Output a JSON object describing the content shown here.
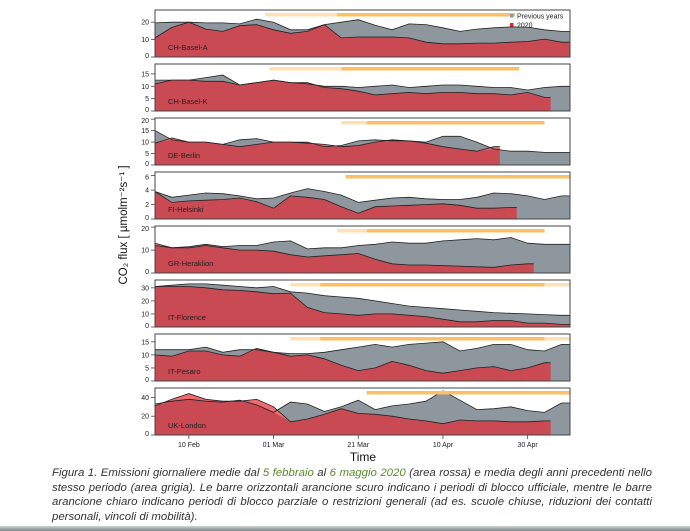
{
  "chart_data": {
    "type": "area",
    "xlabel": "Time",
    "ylabel": "CO₂ flux [ µmolm⁻²s⁻¹ ]",
    "xlim": [
      "2020-02-02",
      "2020-05-10"
    ],
    "x_ticks": [
      {
        "date": "2020-02-10",
        "label": "10 Feb"
      },
      {
        "date": "2020-03-01",
        "label": "01 Mar"
      },
      {
        "date": "2020-03-21",
        "label": "21 Mar"
      },
      {
        "date": "2020-04-10",
        "label": "10 Apr"
      },
      {
        "date": "2020-04-30",
        "label": "30 Apr"
      }
    ],
    "legend": {
      "placement": "top-right",
      "items": [
        {
          "label": "Previous years",
          "color": "#8e979e"
        },
        {
          "label": "2020",
          "color": "#e8262c"
        }
      ]
    },
    "colors": {
      "previous_years": "#8e979e",
      "y2020": "#c94a52",
      "y2020_above": "#f06a6e",
      "bar_dark": "#fbbf66",
      "bar_light": "#fde0b4"
    },
    "x": [
      "2020-02-02",
      "2020-02-06",
      "2020-02-10",
      "2020-02-14",
      "2020-02-18",
      "2020-02-22",
      "2020-02-26",
      "2020-03-01",
      "2020-03-05",
      "2020-03-09",
      "2020-03-13",
      "2020-03-17",
      "2020-03-21",
      "2020-03-25",
      "2020-03-29",
      "2020-04-02",
      "2020-04-06",
      "2020-04-10",
      "2020-04-14",
      "2020-04-18",
      "2020-04-22",
      "2020-04-26",
      "2020-04-30",
      "2020-05-04",
      "2020-05-08"
    ],
    "panels": [
      {
        "site": "CH-Basel-A",
        "ylim": [
          0,
          27
        ],
        "yticks": [
          0,
          10,
          20
        ],
        "y2020": [
          11,
          17,
          20,
          16,
          14.7,
          18,
          18.6,
          15.6,
          13.6,
          14.7,
          18.6,
          11,
          11.5,
          11.5,
          11.5,
          11,
          8.5,
          7.6,
          7.6,
          8,
          8,
          8.5,
          8.9,
          10.3,
          8.5
        ],
        "previous_years": [
          19.6,
          20,
          20,
          19.6,
          19.6,
          19,
          21.7,
          20,
          15.6,
          15.6,
          18.6,
          20,
          21.4,
          18.2,
          15.6,
          19,
          18.6,
          16.8,
          14.7,
          16,
          16.8,
          17.3,
          17.2,
          15.6,
          14.7
        ],
        "restrictions": [
          {
            "level": "partial",
            "start": "2020-02-28",
            "end": "2020-03-16"
          },
          {
            "level": "lockdown",
            "start": "2020-03-16",
            "end": "2020-04-27"
          }
        ]
      },
      {
        "site": "CH-Basel-K",
        "ylim": [
          0,
          19
        ],
        "yticks": [
          0,
          5,
          10,
          15
        ],
        "y2020": [
          11,
          12.5,
          12.5,
          12,
          12,
          10.5,
          11.5,
          12.5,
          11.5,
          11.5,
          9.5,
          9,
          8,
          6.5,
          7,
          7.5,
          7,
          7.5,
          7.5,
          7,
          7,
          6.5,
          7.5,
          5.5,
          null
        ],
        "previous_years": [
          12.5,
          12.5,
          12.5,
          13.5,
          14.5,
          10.5,
          11.5,
          12.5,
          11.5,
          11,
          10,
          10,
          9.5,
          10,
          10.5,
          9.5,
          10,
          10.5,
          10.5,
          10,
          9.5,
          9.5,
          8.5,
          9.5,
          10
        ],
        "restrictions": [
          {
            "level": "partial",
            "start": "2020-02-29",
            "end": "2020-03-17"
          },
          {
            "level": "lockdown",
            "start": "2020-03-17",
            "end": "2020-04-28"
          }
        ]
      },
      {
        "site": "DE-Berlin",
        "ylim": [
          0,
          20.5
        ],
        "yticks": [
          0,
          5,
          10,
          15,
          20
        ],
        "y2020": [
          9.5,
          11.8,
          10,
          10,
          9,
          8,
          9,
          10,
          10,
          9.5,
          9,
          8,
          8.5,
          10,
          11,
          10.5,
          9.5,
          8,
          7,
          6,
          8,
          null,
          null,
          null,
          null
        ],
        "previous_years": [
          15,
          11,
          10,
          10,
          9,
          11,
          11.5,
          10,
          10,
          10,
          8,
          8.5,
          10.5,
          11,
          10.5,
          10.5,
          10,
          12.5,
          12.5,
          10,
          7,
          6,
          6,
          5.5,
          5.5
        ],
        "restrictions": [
          {
            "level": "partial",
            "start": "2020-03-17",
            "end": "2020-03-23"
          },
          {
            "level": "lockdown",
            "start": "2020-03-23",
            "end": "2020-05-04"
          }
        ]
      },
      {
        "site": "FI-Helsinki",
        "ylim": [
          0,
          6.5
        ],
        "yticks": [
          0,
          2,
          4,
          6
        ],
        "y2020": [
          3.8,
          2.3,
          2.5,
          2.6,
          2.7,
          2.9,
          2.4,
          1.5,
          3.2,
          3.0,
          2.7,
          1.7,
          0.8,
          1.7,
          1.8,
          1.9,
          2.0,
          2.1,
          1.9,
          1.5,
          1.5,
          1.6,
          null,
          null,
          null
        ],
        "previous_years": [
          3.8,
          3.0,
          3.3,
          3.6,
          3.5,
          3.2,
          2.8,
          2.9,
          3.6,
          4.2,
          3.8,
          3.3,
          2.3,
          2.6,
          2.9,
          3.0,
          2.8,
          2.7,
          2.7,
          3.0,
          3.6,
          3.5,
          3.2,
          2.7,
          3.2
        ],
        "restrictions": [
          {
            "level": "lockdown",
            "start": "2020-03-18",
            "end": "2020-05-10"
          }
        ]
      },
      {
        "site": "GR-Heraklion",
        "ylim": [
          0,
          20.5
        ],
        "yticks": [
          0,
          10,
          20
        ],
        "y2020": [
          13,
          11,
          11,
          12,
          11,
          10,
          10,
          9.5,
          8,
          7,
          7.5,
          8,
          8.5,
          6,
          4,
          3.5,
          3.5,
          3.2,
          3,
          2.7,
          2.5,
          3.5,
          4,
          null,
          null
        ],
        "previous_years": [
          12,
          11,
          11.5,
          12.5,
          11.5,
          12,
          12,
          13.5,
          14,
          10.5,
          11,
          11,
          12,
          12.5,
          13.5,
          13,
          13,
          14,
          14.5,
          15,
          14.5,
          15.5,
          13,
          12.5,
          12.5
        ],
        "restrictions": [
          {
            "level": "partial",
            "start": "2020-03-16",
            "end": "2020-03-23"
          },
          {
            "level": "lockdown",
            "start": "2020-03-23",
            "end": "2020-05-04"
          }
        ]
      },
      {
        "site": "IT-Florence",
        "ylim": [
          0,
          36
        ],
        "yticks": [
          0,
          10,
          20,
          30
        ],
        "y2020": [
          31,
          31,
          31,
          30,
          28.5,
          28,
          27,
          25.5,
          26,
          15,
          11,
          10,
          9,
          10,
          10,
          9,
          8,
          6,
          4,
          4,
          5,
          5,
          3,
          3,
          2
        ],
        "previous_years": [
          31,
          32,
          33,
          33,
          32,
          31,
          30,
          31,
          27,
          26,
          24,
          23,
          22,
          20,
          18,
          16,
          15,
          14,
          13,
          12,
          11,
          10.5,
          10,
          9.5,
          9
        ],
        "restrictions": [
          {
            "level": "partial",
            "start": "2020-03-05",
            "end": "2020-03-12"
          },
          {
            "level": "lockdown",
            "start": "2020-03-12",
            "end": "2020-05-04"
          },
          {
            "level": "partial",
            "start": "2020-05-04",
            "end": "2020-05-10"
          }
        ]
      },
      {
        "site": "IT-Pesaro",
        "ylim": [
          0,
          18
        ],
        "yticks": [
          0,
          5,
          10,
          15
        ],
        "y2020": [
          10,
          9.5,
          11.5,
          11.5,
          10,
          9.5,
          12.5,
          11,
          9.5,
          10,
          8.5,
          6,
          4,
          5,
          7.5,
          6,
          4,
          3,
          4,
          5,
          5.5,
          4,
          5,
          7,
          null
        ],
        "previous_years": [
          12,
          12,
          12,
          13,
          11,
          12,
          12,
          11,
          10.5,
          10.5,
          11,
          12,
          13,
          14,
          13,
          14,
          14.5,
          15,
          11.5,
          12.5,
          14,
          14,
          12,
          11.5,
          14
        ],
        "restrictions": [
          {
            "level": "partial",
            "start": "2020-03-05",
            "end": "2020-03-12"
          },
          {
            "level": "lockdown",
            "start": "2020-03-12",
            "end": "2020-05-04"
          },
          {
            "level": "partial",
            "start": "2020-05-04",
            "end": "2020-05-10"
          }
        ]
      },
      {
        "site": "UK-London",
        "ylim": [
          0,
          50
        ],
        "yticks": [
          0,
          20,
          40
        ],
        "y2020": [
          31,
          38,
          44,
          38,
          36,
          36,
          38,
          30,
          14,
          17,
          22,
          28,
          23,
          22,
          20,
          17,
          15,
          12,
          16,
          15,
          15,
          14,
          14,
          15,
          null
        ],
        "previous_years": [
          33,
          36,
          38,
          36,
          35,
          37,
          32,
          24,
          35,
          33,
          25,
          30,
          37,
          27,
          31,
          33,
          36,
          47,
          37,
          27,
          28,
          30,
          26,
          24,
          34
        ],
        "restrictions": [
          {
            "level": "lockdown",
            "start": "2020-03-23",
            "end": "2020-05-10"
          }
        ]
      }
    ]
  },
  "caption": {
    "part1": "Figura 1. Emissioni giornaliere medie dal ",
    "date_from": "5 febbraio",
    "part2": " al ",
    "date_to": "6 maggio 2020",
    "part3": " (area rossa) e media degli anni precedenti nello stesso periodo (area grigia). Le barre orizzontali arancione scuro indicano i periodi di blocco ufficiale, mentre le barre arancione chiaro indicano periodi di blocco parziale o restrizioni generali (ad es. scuole chiuse, riduzioni dei contatti personali, vincoli di mobilità)."
  }
}
